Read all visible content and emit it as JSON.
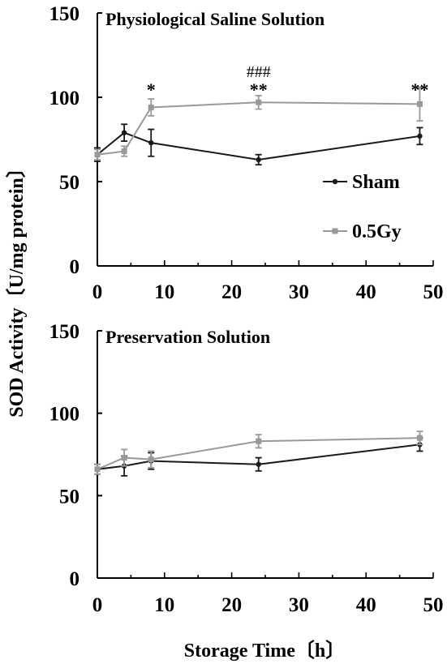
{
  "figure": {
    "ylabel": "SOD Activity〔U/mg protein〕",
    "xlabel": "Storage Time〔h〕"
  },
  "chart_data": [
    {
      "type": "line",
      "title": "Physiological Saline Solution",
      "xlim": [
        0,
        50
      ],
      "ylim": [
        0,
        150
      ],
      "xticks": [
        0,
        10,
        20,
        30,
        40,
        50
      ],
      "yticks": [
        0,
        50,
        100,
        150
      ],
      "grid": false,
      "legend": "right",
      "series": [
        {
          "name": "Sham",
          "color": "#1a1a1a",
          "marker": "circle",
          "x": [
            0,
            4,
            8,
            24,
            48
          ],
          "y": [
            66,
            79,
            73,
            63,
            77
          ],
          "err": [
            4,
            5,
            8,
            3,
            5
          ]
        },
        {
          "name": "0.5Gy",
          "color": "#999999",
          "marker": "square",
          "x": [
            0,
            4,
            8,
            24,
            48
          ],
          "y": [
            66,
            68,
            94,
            97,
            96
          ],
          "err": [
            3,
            3,
            5,
            4,
            10
          ]
        }
      ],
      "annotations": [
        {
          "text": "*",
          "x": 8,
          "y": 101
        },
        {
          "text": "###",
          "x": 24,
          "y": 112
        },
        {
          "text": "**",
          "x": 24,
          "y": 101
        },
        {
          "text": "**",
          "x": 48,
          "y": 101
        }
      ]
    },
    {
      "type": "line",
      "title": "Preservation  Solution",
      "xlim": [
        0,
        50
      ],
      "ylim": [
        0,
        150
      ],
      "xticks": [
        0,
        10,
        20,
        30,
        40,
        50
      ],
      "yticks": [
        0,
        50,
        100,
        150
      ],
      "grid": false,
      "series": [
        {
          "name": "Sham",
          "color": "#1a1a1a",
          "marker": "circle",
          "x": [
            0,
            4,
            8,
            24,
            48
          ],
          "y": [
            66,
            68,
            71,
            69,
            81
          ],
          "err": [
            3,
            6,
            5,
            4,
            4
          ]
        },
        {
          "name": "0.5Gy",
          "color": "#999999",
          "marker": "square",
          "x": [
            0,
            4,
            8,
            24,
            48
          ],
          "y": [
            66,
            73,
            72,
            83,
            85
          ],
          "err": [
            3,
            5,
            5,
            4,
            4
          ]
        }
      ]
    }
  ]
}
